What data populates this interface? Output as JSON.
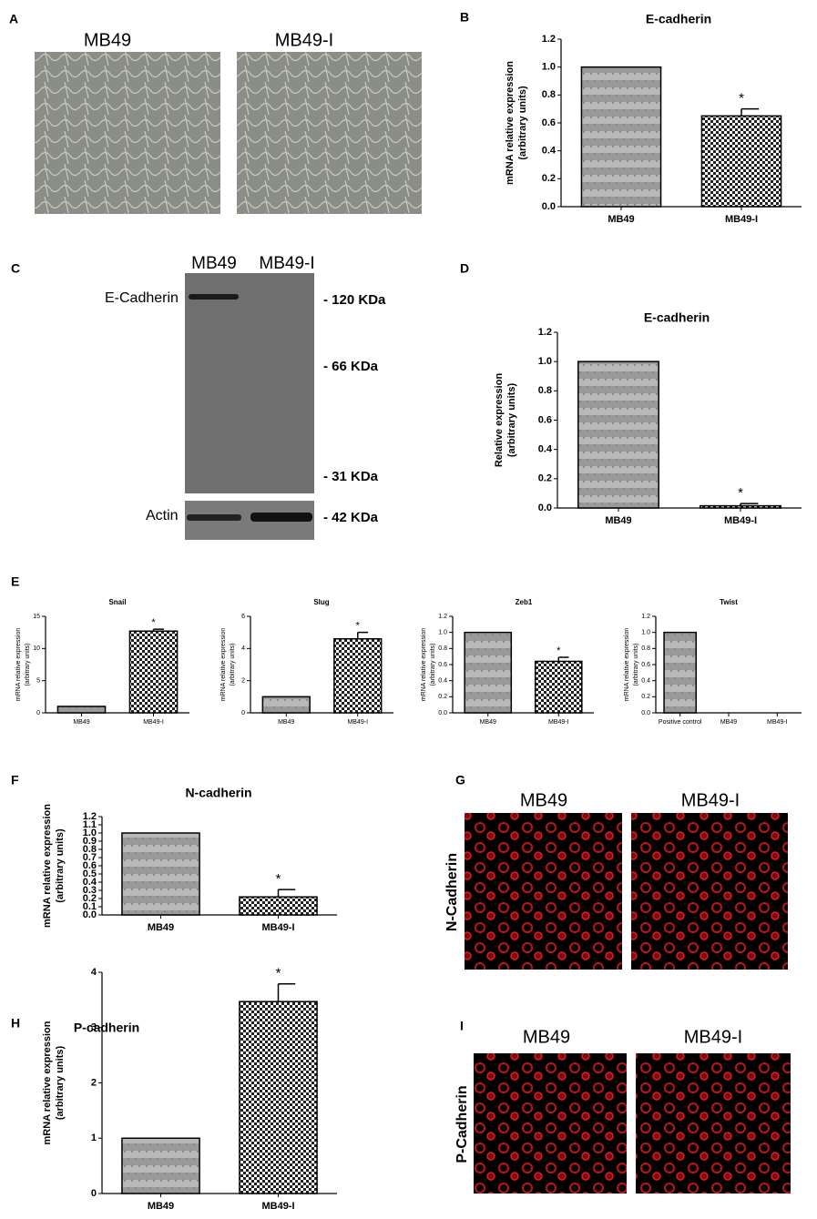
{
  "micrographs_A": {
    "panel": "A",
    "labels": [
      "MB49",
      "MB49-I"
    ]
  },
  "blot_C": {
    "panel": "C",
    "lanes": [
      "MB49",
      "MB49-I"
    ],
    "proteins": [
      "E-Cadherin",
      "Actin"
    ],
    "markers": [
      "- 120 KDa",
      "- 66 KDa",
      "- 31 KDa",
      "- 42 KDa"
    ]
  },
  "panel_E": "E",
  "staining_G": {
    "panel": "G",
    "labels": [
      "MB49",
      "MB49-I"
    ],
    "marker": "N-Cadherin"
  },
  "staining_I": {
    "panel": "I",
    "labels": [
      "MB49",
      "MB49-I"
    ],
    "marker": "P-Cadherin"
  },
  "chart_data": [
    {
      "type": "bar",
      "panel": "B",
      "title": "E-cadherin",
      "ylabel": [
        "mRNA relative expression",
        "(arbitrary units)"
      ],
      "categories": [
        "MB49",
        "MB49-I"
      ],
      "values": [
        1.0,
        0.65
      ],
      "errors": [
        null,
        0.05
      ],
      "significance": [
        null,
        "*"
      ],
      "ylim": [
        0,
        1.2
      ],
      "yticks": [
        {
          "value": 0,
          "label": "0.0"
        },
        0.2,
        0.4,
        0.6,
        0.8,
        {
          "value": 1,
          "label": "1.0"
        },
        1.2
      ]
    },
    {
      "type": "bar",
      "panel": "D",
      "title": "E-cadherin",
      "ylabel": [
        "Relative expression",
        "(arbitrary units)"
      ],
      "categories": [
        "MB49",
        "MB49-I"
      ],
      "values": [
        1.0,
        0.015
      ],
      "errors": [
        null,
        0.015
      ],
      "significance": [
        null,
        "*"
      ],
      "ylim": [
        0,
        1.2
      ],
      "yticks": [
        {
          "value": 0,
          "label": "0.0"
        },
        0.2,
        0.4,
        0.6,
        0.8,
        {
          "value": 1,
          "label": "1.0"
        },
        1.2
      ]
    },
    {
      "type": "bar",
      "title": "Snail",
      "ylabel": [
        "mRNA relative expression",
        "(arbitrary units)"
      ],
      "categories": [
        "MB49",
        "MB49-I"
      ],
      "values": [
        1,
        12.7
      ],
      "errors": [
        null,
        0.3
      ],
      "significance": [
        null,
        "*"
      ],
      "ylim": [
        0,
        15
      ],
      "yticks": [
        0,
        5,
        10,
        15
      ]
    },
    {
      "type": "bar",
      "title": "Slug",
      "ylabel": [
        "mRNA relative expression",
        "(arbitrary units)"
      ],
      "categories": [
        "MB49",
        "MB49-I"
      ],
      "values": [
        1,
        4.6
      ],
      "errors": [
        null,
        0.4
      ],
      "significance": [
        null,
        "*"
      ],
      "ylim": [
        0,
        6
      ],
      "yticks": [
        0,
        2,
        4,
        6
      ]
    },
    {
      "type": "bar",
      "title": "Zeb1",
      "ylabel": [
        "mRNA relative expression",
        "(arbitrary units)"
      ],
      "categories": [
        "MB49",
        "MB49-I"
      ],
      "values": [
        1.0,
        0.64
      ],
      "errors": [
        null,
        0.05
      ],
      "significance": [
        null,
        "*"
      ],
      "ylim": [
        0,
        1.2
      ],
      "yticks": [
        {
          "value": 0,
          "label": "0.0"
        },
        0.2,
        0.4,
        0.6,
        0.8,
        {
          "value": 1,
          "label": "1.0"
        },
        1.2
      ]
    },
    {
      "type": "bar",
      "title": "Twist",
      "ylabel": [
        "mRNA relative expression",
        "(arbitrary units)"
      ],
      "categories": [
        "Positive control",
        "MB49",
        "MB49-I"
      ],
      "values": [
        1.0,
        0,
        0
      ],
      "ylim": [
        0,
        1.2
      ],
      "yticks": [
        {
          "value": 0,
          "label": "0.0"
        },
        0.2,
        0.4,
        0.6,
        0.8,
        {
          "value": 1,
          "label": "1.0"
        },
        1.2
      ]
    },
    {
      "type": "bar",
      "panel": "F",
      "title": "N-cadherin",
      "ylabel": [
        "mRNA relative expression",
        "(arbitrary units)"
      ],
      "categories": [
        "MB49",
        "MB49-I"
      ],
      "values": [
        1.0,
        0.22
      ],
      "errors": [
        null,
        0.09
      ],
      "significance": [
        null,
        "*"
      ],
      "ylim": [
        0,
        1.2
      ],
      "yticks": [
        {
          "value": 0,
          "label": "0.0"
        },
        0.1,
        0.2,
        0.3,
        0.4,
        0.5,
        0.6,
        0.7,
        0.8,
        0.9,
        {
          "value": 1,
          "label": "1.0"
        },
        1.1,
        1.2
      ]
    },
    {
      "type": "bar",
      "panel": "H",
      "title": "P-cadherin",
      "ylabel": [
        "mRNA relative expression",
        "(arbitrary units)"
      ],
      "categories": [
        "MB49",
        "MB49-I"
      ],
      "values": [
        1,
        3.47
      ],
      "errors": [
        null,
        0.32
      ],
      "significance": [
        null,
        "*"
      ],
      "ylim": [
        0,
        4
      ],
      "yticks": [
        0,
        1,
        2,
        3,
        4
      ]
    }
  ]
}
